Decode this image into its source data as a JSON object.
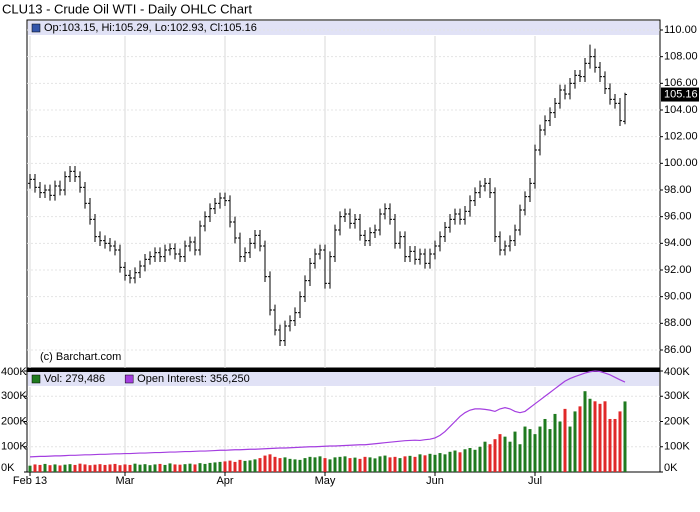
{
  "chart_data": [
    {
      "type": "ohlc",
      "title": "CLU13 - Crude Oil WTI - Daily OHLC Chart",
      "legend_text": "Op:103.15, Hi:105.29, Lo:102.93, Cl:105.16",
      "annotation": "(c) Barchart.com",
      "color": "#000000",
      "legend_color": "#3355aa",
      "grid": true,
      "ylim": [
        84.65,
        110.75
      ],
      "yticks": [
        {
          "value": 86,
          "label": "86.00"
        },
        {
          "value": 88,
          "label": "88.00"
        },
        {
          "value": 90,
          "label": "90.00"
        },
        {
          "value": 92,
          "label": "92.00"
        },
        {
          "value": 94,
          "label": "94.00"
        },
        {
          "value": 96,
          "label": "96.00"
        },
        {
          "value": 98,
          "label": "98.00"
        },
        {
          "value": 100,
          "label": "100.00"
        },
        {
          "value": 102,
          "label": "102.00"
        },
        {
          "value": 104,
          "label": "104.00"
        },
        {
          "value": 106,
          "label": "106.00"
        },
        {
          "value": 108,
          "label": "108.00"
        },
        {
          "value": 110,
          "label": "110.00"
        }
      ],
      "last_tick": {
        "value": 105.16,
        "label": "105.16"
      },
      "ohlc": [
        [
          98.5,
          99.2,
          98.1,
          98.8
        ],
        [
          98.8,
          99.2,
          97.8,
          98.2
        ],
        [
          98.2,
          98.6,
          97.4,
          97.8
        ],
        [
          97.8,
          98.4,
          97.4,
          98.0
        ],
        [
          98.0,
          98.4,
          97.2,
          97.6
        ],
        [
          97.6,
          98.7,
          97.2,
          98.3
        ],
        [
          98.3,
          98.7,
          97.6,
          98.0
        ],
        [
          98.0,
          99.4,
          97.6,
          99.0
        ],
        [
          99.0,
          99.8,
          98.6,
          99.4
        ],
        [
          99.4,
          99.8,
          98.6,
          99.0
        ],
        [
          99.0,
          99.4,
          97.8,
          98.2
        ],
        [
          98.2,
          98.6,
          96.6,
          97.0
        ],
        [
          97.0,
          97.4,
          95.4,
          95.8
        ],
        [
          95.8,
          96.2,
          94.1,
          94.5
        ],
        [
          94.5,
          94.9,
          93.8,
          94.2
        ],
        [
          94.2,
          94.6,
          93.6,
          94.0
        ],
        [
          94.0,
          94.4,
          93.4,
          93.8
        ],
        [
          93.8,
          94.2,
          93.1,
          93.5
        ],
        [
          93.5,
          93.9,
          91.8,
          92.2
        ],
        [
          92.2,
          92.6,
          91.2,
          91.6
        ],
        [
          91.6,
          92.0,
          91.0,
          91.4
        ],
        [
          91.4,
          92.2,
          91.0,
          91.8
        ],
        [
          91.8,
          92.7,
          91.4,
          92.3
        ],
        [
          92.3,
          93.2,
          91.9,
          92.8
        ],
        [
          92.8,
          93.4,
          92.4,
          93.0
        ],
        [
          93.0,
          93.7,
          92.6,
          93.3
        ],
        [
          93.3,
          93.7,
          92.6,
          93.0
        ],
        [
          93.0,
          93.9,
          92.6,
          93.5
        ],
        [
          93.5,
          94.0,
          93.1,
          93.6
        ],
        [
          93.6,
          94.0,
          92.8,
          93.2
        ],
        [
          93.2,
          93.6,
          92.6,
          93.0
        ],
        [
          93.0,
          94.2,
          92.6,
          93.8
        ],
        [
          93.8,
          94.5,
          93.4,
          94.1
        ],
        [
          94.1,
          94.5,
          93.1,
          93.5
        ],
        [
          93.5,
          95.7,
          93.1,
          95.3
        ],
        [
          95.3,
          96.4,
          94.9,
          96.0
        ],
        [
          96.0,
          97.0,
          95.6,
          96.6
        ],
        [
          96.6,
          97.4,
          96.2,
          97.0
        ],
        [
          97.0,
          97.8,
          96.6,
          97.4
        ],
        [
          97.4,
          97.8,
          96.8,
          97.2
        ],
        [
          97.2,
          97.6,
          95.2,
          95.6
        ],
        [
          95.6,
          96.0,
          94.0,
          94.4
        ],
        [
          94.4,
          94.8,
          92.6,
          93.0
        ],
        [
          93.0,
          93.7,
          92.6,
          93.3
        ],
        [
          93.3,
          94.4,
          92.9,
          94.0
        ],
        [
          94.0,
          95.0,
          93.6,
          94.6
        ],
        [
          94.6,
          95.0,
          93.4,
          93.8
        ],
        [
          93.8,
          94.2,
          91.1,
          91.5
        ],
        [
          91.5,
          91.9,
          88.6,
          89.0
        ],
        [
          89.0,
          89.4,
          87.1,
          87.5
        ],
        [
          87.5,
          87.9,
          86.3,
          86.7
        ],
        [
          86.7,
          88.2,
          86.3,
          87.8
        ],
        [
          87.8,
          88.6,
          87.4,
          88.2
        ],
        [
          88.2,
          89.2,
          87.8,
          88.8
        ],
        [
          88.8,
          90.4,
          88.4,
          90.0
        ],
        [
          90.0,
          91.6,
          89.6,
          91.2
        ],
        [
          91.2,
          92.9,
          90.8,
          92.5
        ],
        [
          92.5,
          93.6,
          92.1,
          93.2
        ],
        [
          93.2,
          93.9,
          92.8,
          93.5
        ],
        [
          93.5,
          93.9,
          90.6,
          91.0
        ],
        [
          91.0,
          93.4,
          90.6,
          93.0
        ],
        [
          93.0,
          95.4,
          92.6,
          95.0
        ],
        [
          95.0,
          96.4,
          94.6,
          96.0
        ],
        [
          96.0,
          96.6,
          95.6,
          96.2
        ],
        [
          96.2,
          96.6,
          95.1,
          95.5
        ],
        [
          95.5,
          96.2,
          95.1,
          95.8
        ],
        [
          95.8,
          96.2,
          94.2,
          94.6
        ],
        [
          94.6,
          95.0,
          93.8,
          94.2
        ],
        [
          94.2,
          95.2,
          93.8,
          94.8
        ],
        [
          94.8,
          95.4,
          94.4,
          95.0
        ],
        [
          95.0,
          96.6,
          94.6,
          96.2
        ],
        [
          96.2,
          97.0,
          95.8,
          96.6
        ],
        [
          96.6,
          97.0,
          95.4,
          95.8
        ],
        [
          95.8,
          96.2,
          93.6,
          94.0
        ],
        [
          94.0,
          94.9,
          93.6,
          94.5
        ],
        [
          94.5,
          94.9,
          92.6,
          93.0
        ],
        [
          93.0,
          93.8,
          92.6,
          93.4
        ],
        [
          93.4,
          93.8,
          92.4,
          92.8
        ],
        [
          92.8,
          93.6,
          92.4,
          93.2
        ],
        [
          93.2,
          93.6,
          92.1,
          92.5
        ],
        [
          92.5,
          93.6,
          92.1,
          93.2
        ],
        [
          93.2,
          94.2,
          92.8,
          93.8
        ],
        [
          93.8,
          94.9,
          93.4,
          94.5
        ],
        [
          94.5,
          95.6,
          94.1,
          95.2
        ],
        [
          95.2,
          96.2,
          94.8,
          95.8
        ],
        [
          95.8,
          96.6,
          95.4,
          96.2
        ],
        [
          96.2,
          96.6,
          95.4,
          95.8
        ],
        [
          95.8,
          96.8,
          95.4,
          96.4
        ],
        [
          96.4,
          97.6,
          96.0,
          97.2
        ],
        [
          97.2,
          98.2,
          96.8,
          97.8
        ],
        [
          97.8,
          98.7,
          97.4,
          98.3
        ],
        [
          98.3,
          98.9,
          97.9,
          98.5
        ],
        [
          98.5,
          98.9,
          97.4,
          97.8
        ],
        [
          97.8,
          98.2,
          94.1,
          94.5
        ],
        [
          94.5,
          94.9,
          93.1,
          93.5
        ],
        [
          93.5,
          94.2,
          93.1,
          93.8
        ],
        [
          93.8,
          94.6,
          93.4,
          94.2
        ],
        [
          94.2,
          95.4,
          93.8,
          95.0
        ],
        [
          95.0,
          96.9,
          94.6,
          96.5
        ],
        [
          96.5,
          97.9,
          96.1,
          97.5
        ],
        [
          97.5,
          98.9,
          97.1,
          98.5
        ],
        [
          98.5,
          101.4,
          98.1,
          101.0
        ],
        [
          101.0,
          102.9,
          100.6,
          102.5
        ],
        [
          102.5,
          103.6,
          102.1,
          103.2
        ],
        [
          103.2,
          104.2,
          102.8,
          103.8
        ],
        [
          103.8,
          104.9,
          103.4,
          104.5
        ],
        [
          104.5,
          105.9,
          104.1,
          105.5
        ],
        [
          105.5,
          105.9,
          104.8,
          105.2
        ],
        [
          105.2,
          106.4,
          104.8,
          106.0
        ],
        [
          106.0,
          107.0,
          105.6,
          106.6
        ],
        [
          106.6,
          107.0,
          106.1,
          106.5
        ],
        [
          106.5,
          107.9,
          106.1,
          107.5
        ],
        [
          107.5,
          108.9,
          107.1,
          108.0
        ],
        [
          108.0,
          108.6,
          106.8,
          107.2
        ],
        [
          107.2,
          107.6,
          106.1,
          106.5
        ],
        [
          106.5,
          106.9,
          105.2,
          105.6
        ],
        [
          105.6,
          106.0,
          104.4,
          104.8
        ],
        [
          104.8,
          105.2,
          104.1,
          104.5
        ],
        [
          104.5,
          104.9,
          102.8,
          103.2
        ],
        [
          103.15,
          105.29,
          102.93,
          105.16
        ]
      ]
    },
    {
      "type": "bar",
      "grid": true,
      "categories": [
        "Feb 13",
        null,
        null,
        null,
        null,
        null,
        null,
        null,
        null,
        null,
        null,
        null,
        null,
        null,
        null,
        null,
        null,
        null,
        null,
        "Mar",
        null,
        null,
        null,
        null,
        null,
        null,
        null,
        null,
        null,
        null,
        null,
        null,
        null,
        null,
        null,
        null,
        null,
        null,
        null,
        "Apr",
        null,
        null,
        null,
        null,
        null,
        null,
        null,
        null,
        null,
        null,
        null,
        null,
        null,
        null,
        null,
        null,
        null,
        null,
        null,
        "May",
        null,
        null,
        null,
        null,
        null,
        null,
        null,
        null,
        null,
        null,
        null,
        null,
        null,
        null,
        null,
        null,
        null,
        null,
        null,
        null,
        null,
        "Jun",
        null,
        null,
        null,
        null,
        null,
        null,
        null,
        null,
        null,
        null,
        null,
        null,
        null,
        null,
        null,
        null,
        null,
        null,
        null,
        "Jul",
        null,
        null,
        null,
        null,
        null,
        null,
        null,
        null,
        null,
        null,
        null,
        null,
        null,
        null,
        null,
        null,
        null,
        null
      ],
      "ylim": [
        0,
        404000
      ],
      "yticks": [
        {
          "value": 0,
          "label": "0K"
        },
        {
          "value": 100000,
          "label": "100K"
        },
        {
          "value": 200000,
          "label": "200K"
        },
        {
          "value": 300000,
          "label": "300K"
        },
        {
          "value": 400000,
          "label": "400K"
        }
      ],
      "y2lim": [
        0,
        404000
      ],
      "y2ticks": [
        {
          "value": 0,
          "label": "0K"
        },
        {
          "value": 100000,
          "label": "100K"
        },
        {
          "value": 200000,
          "label": "200K"
        },
        {
          "value": 300000,
          "label": "300K"
        },
        {
          "value": 400000,
          "label": "400K"
        }
      ],
      "series": [
        {
          "name": "Vol: 279,486",
          "color": "#1f7a1f",
          "down_color": "#e02828",
          "values": [
            25000,
            30000,
            28000,
            32000,
            27000,
            30000,
            26000,
            29000,
            31000,
            28000,
            33000,
            30000,
            27000,
            29000,
            31000,
            28000,
            30000,
            32000,
            27000,
            30000,
            28000,
            33000,
            29000,
            31000,
            27000,
            30000,
            32000,
            28000,
            34000,
            30000,
            29000,
            31000,
            33000,
            30000,
            35000,
            32000,
            36000,
            38000,
            40000,
            42000,
            45000,
            40000,
            48000,
            44000,
            46000,
            50000,
            55000,
            65000,
            70000,
            60000,
            55000,
            58000,
            52000,
            50000,
            48000,
            55000,
            60000,
            58000,
            62000,
            55000,
            50000,
            58000,
            60000,
            62000,
            55000,
            57000,
            52000,
            60000,
            58000,
            54000,
            62000,
            65000,
            58000,
            60000,
            55000,
            62000,
            64000,
            60000,
            70000,
            66000,
            72000,
            68000,
            75000,
            70000,
            80000,
            85000,
            78000,
            90000,
            95000,
            88000,
            100000,
            120000,
            110000,
            130000,
            150000,
            140000,
            120000,
            160000,
            110000,
            180000,
            170000,
            150000,
            180000,
            210000,
            170000,
            230000,
            200000,
            250000,
            180000,
            240000,
            260000,
            320000,
            290000,
            280000,
            270000,
            280000,
            210000,
            210000,
            240000,
            279486
          ]
        },
        {
          "name": "Open Interest: 356,250",
          "color": "#a43ee0",
          "axis": "y2",
          "values": [
            60000,
            61000,
            62000,
            62000,
            63000,
            64000,
            64000,
            65000,
            66000,
            66000,
            67000,
            68000,
            68000,
            69000,
            70000,
            70000,
            71000,
            72000,
            72000,
            73000,
            73000,
            74000,
            75000,
            75000,
            76000,
            77000,
            77000,
            78000,
            79000,
            79000,
            80000,
            81000,
            81000,
            82000,
            83000,
            83000,
            84000,
            85000,
            86000,
            86000,
            87000,
            88000,
            88000,
            89000,
            90000,
            90000,
            91000,
            92000,
            93000,
            94000,
            95000,
            95000,
            96000,
            97000,
            98000,
            99000,
            100000,
            100000,
            101000,
            102000,
            103000,
            103000,
            104000,
            105000,
            106000,
            107000,
            108000,
            108000,
            110000,
            112000,
            114000,
            116000,
            118000,
            120000,
            122000,
            124000,
            125000,
            126000,
            125000,
            128000,
            130000,
            135000,
            145000,
            160000,
            180000,
            200000,
            220000,
            235000,
            245000,
            250000,
            250000,
            248000,
            245000,
            240000,
            250000,
            255000,
            250000,
            240000,
            235000,
            240000,
            255000,
            270000,
            285000,
            300000,
            315000,
            330000,
            345000,
            360000,
            370000,
            378000,
            385000,
            392000,
            397000,
            400000,
            398000,
            392000,
            385000,
            375000,
            365000,
            356250
          ]
        }
      ]
    }
  ]
}
